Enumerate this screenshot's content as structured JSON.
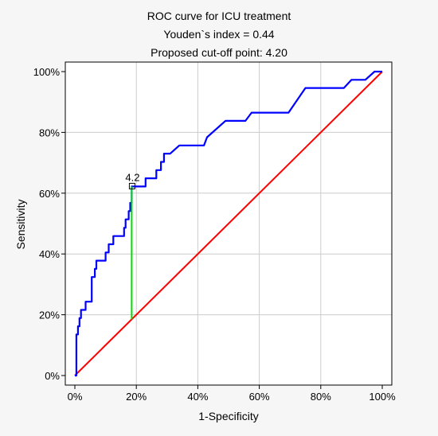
{
  "chart_data": {
    "type": "line",
    "title": "ROC curve for ICU treatment",
    "subtitle_lines": [
      "Youden`s index = 0.44",
      "Proposed cut-off point: 4.20"
    ],
    "xlabel": "1-Specificity",
    "ylabel": "Sensitivity",
    "xlim": [
      0,
      100
    ],
    "ylim": [
      0,
      100
    ],
    "x_ticks": [
      0,
      20,
      40,
      60,
      80,
      100
    ],
    "y_ticks": [
      0,
      20,
      40,
      60,
      80,
      100
    ],
    "x_tick_labels": [
      "0%",
      "20%",
      "40%",
      "60%",
      "80%",
      "100%"
    ],
    "y_tick_labels": [
      "0%",
      "20%",
      "40%",
      "60%",
      "80%",
      "100%"
    ],
    "grid": true,
    "series": [
      {
        "role": "roc-curve",
        "color": "#0000ff",
        "points": [
          [
            0,
            0
          ],
          [
            0.5,
            0
          ],
          [
            0.5,
            13.5
          ],
          [
            1,
            13.5
          ],
          [
            1,
            16.2
          ],
          [
            1.5,
            16.2
          ],
          [
            1.5,
            18.9
          ],
          [
            2,
            18.9
          ],
          [
            2,
            21.6
          ],
          [
            3.5,
            21.6
          ],
          [
            3.5,
            24.3
          ],
          [
            5.5,
            24.3
          ],
          [
            5.5,
            32.4
          ],
          [
            6.5,
            32.4
          ],
          [
            6.5,
            35.1
          ],
          [
            7,
            35.1
          ],
          [
            7,
            37.8
          ],
          [
            10,
            37.8
          ],
          [
            10,
            40.5
          ],
          [
            11,
            40.5
          ],
          [
            11,
            43.2
          ],
          [
            12.5,
            43.2
          ],
          [
            12.5,
            45.9
          ],
          [
            16,
            45.9
          ],
          [
            16,
            48.6
          ],
          [
            16.5,
            48.6
          ],
          [
            16.5,
            51.4
          ],
          [
            17.5,
            51.4
          ],
          [
            17.5,
            54.1
          ],
          [
            18,
            54.1
          ],
          [
            18,
            56.8
          ],
          [
            18.5,
            56.8
          ],
          [
            18.5,
            62.2
          ],
          [
            20,
            62.2
          ],
          [
            20,
            62.2
          ],
          [
            23,
            62.2
          ],
          [
            23,
            64.9
          ],
          [
            26.5,
            64.9
          ],
          [
            26.5,
            67.6
          ],
          [
            28,
            67.6
          ],
          [
            28,
            70.3
          ],
          [
            29,
            70.3
          ],
          [
            29,
            73
          ],
          [
            31,
            73
          ],
          [
            34,
            75.7
          ],
          [
            42,
            75.7
          ],
          [
            43,
            78.4
          ],
          [
            49,
            83.8
          ],
          [
            55.5,
            83.8
          ],
          [
            57.5,
            86.5
          ],
          [
            69.5,
            86.5
          ],
          [
            75,
            94.6
          ],
          [
            87.5,
            94.6
          ],
          [
            90,
            97.3
          ],
          [
            94.5,
            97.3
          ],
          [
            97.5,
            100
          ],
          [
            100,
            100
          ]
        ]
      },
      {
        "role": "reference-diagonal",
        "color": "#ff0000",
        "points": [
          [
            0,
            0
          ],
          [
            100,
            100
          ]
        ]
      },
      {
        "role": "youden-segment",
        "color": "#00dd00",
        "points": [
          [
            18.5,
            18.5
          ],
          [
            18.5,
            62.2
          ]
        ]
      }
    ],
    "annotations": [
      {
        "text": "4.2",
        "x": 18.5,
        "y": 62.2,
        "marker": "square"
      }
    ]
  }
}
